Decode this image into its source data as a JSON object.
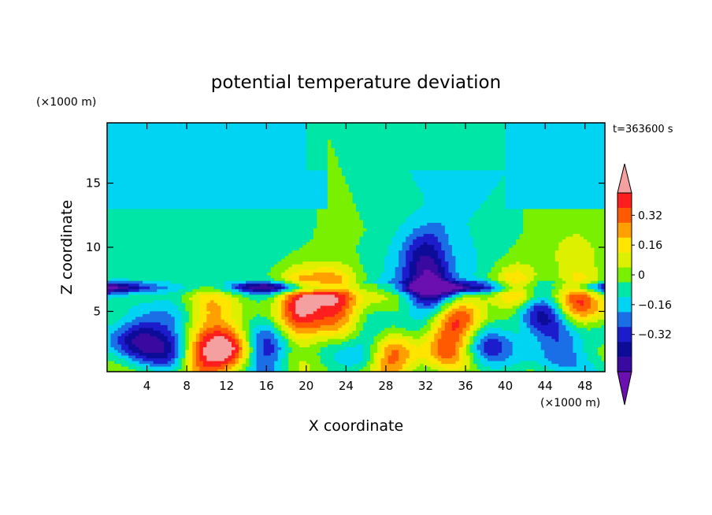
{
  "chart_data": {
    "type": "heatmap",
    "title": "potential temperature deviation",
    "xlabel": "X coordinate",
    "ylabel": "Z coordinate",
    "x_unit_label": "(×1000 m)",
    "y_unit_label": "(×1000 m)",
    "time_label": "t=363600 s",
    "xlim": [
      0,
      50
    ],
    "ylim": [
      0.3,
      19.7
    ],
    "x_ticks": [
      4,
      8,
      12,
      16,
      20,
      24,
      28,
      32,
      36,
      40,
      44,
      48
    ],
    "y_ticks": [
      5,
      10,
      15
    ],
    "colorbar": {
      "levels": [
        -0.48,
        -0.4,
        -0.32,
        -0.24,
        -0.16,
        -0.08,
        0,
        0.08,
        0.16,
        0.24,
        0.32,
        0.4,
        0.48
      ],
      "colors": [
        "#6a0fb0",
        "#3a0aa0",
        "#0c0c98",
        "#1c1ccc",
        "#1a6ee6",
        "#00d4f2",
        "#00e6a6",
        "#78f000",
        "#dcf000",
        "#ffe500",
        "#ffa000",
        "#ff5a00",
        "#ff1e1e",
        "#f5a0a0"
      ],
      "label_values": [
        "0.32",
        "0.16",
        "0",
        "−0.16",
        "−0.32"
      ]
    },
    "field": {
      "blobs": [
        {
          "x": 3,
          "z": 3,
          "v": -0.4
        },
        {
          "x": 6,
          "z": 2.5,
          "v": -0.28
        },
        {
          "x": 9.5,
          "z": 1.2,
          "v": 0.36
        },
        {
          "x": 12.5,
          "z": 2.2,
          "v": 0.42
        },
        {
          "x": 16,
          "z": 1.8,
          "v": -0.32
        },
        {
          "x": 19,
          "z": 3.5,
          "v": 0.16
        },
        {
          "x": 19.5,
          "z": 6.2,
          "v": 0.44
        },
        {
          "x": 23,
          "z": 6.3,
          "v": 0.4
        },
        {
          "x": 23.5,
          "z": 4.5,
          "v": 0.22
        },
        {
          "x": 26.5,
          "z": 2.5,
          "v": -0.24
        },
        {
          "x": 28.5,
          "z": 1.2,
          "v": 0.4
        },
        {
          "x": 32,
          "z": 9.5,
          "v": -0.22
        },
        {
          "x": 32.5,
          "z": 6.8,
          "v": -0.44
        },
        {
          "x": 34,
          "z": 2.6,
          "v": 0.36
        },
        {
          "x": 35.5,
          "z": 4.5,
          "v": 0.26
        },
        {
          "x": 38,
          "z": 2.5,
          "v": -0.26
        },
        {
          "x": 41,
          "z": 6.5,
          "v": 0.4
        },
        {
          "x": 43.5,
          "z": 5,
          "v": -0.38
        },
        {
          "x": 45.5,
          "z": 2.6,
          "v": -0.3
        },
        {
          "x": 47.5,
          "z": 5.5,
          "v": 0.42
        },
        {
          "x": 47,
          "z": 9.5,
          "v": 0.14
        },
        {
          "x": 10,
          "z": 4.8,
          "v": 0.2
        },
        {
          "x": 2,
          "z": 10,
          "v": -0.08
        }
      ],
      "inversion_band": {
        "z": 6.9,
        "v": -0.46
      }
    }
  }
}
